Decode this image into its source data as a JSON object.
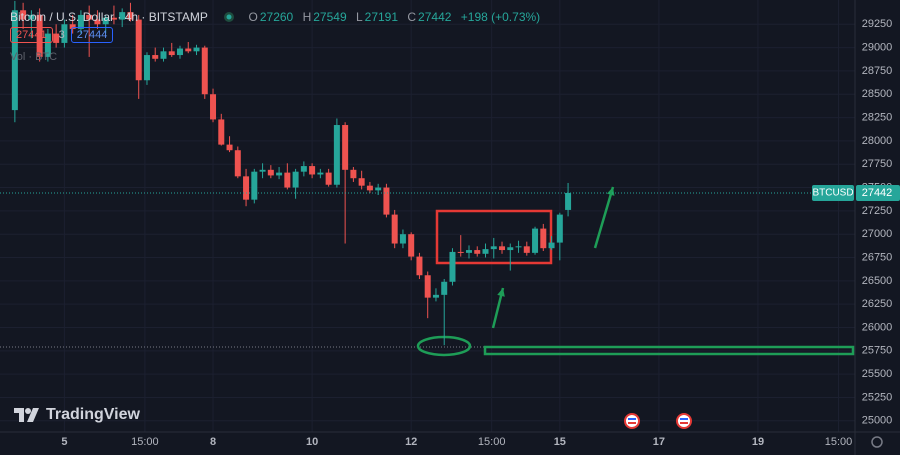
{
  "chart_data": {
    "type": "candlestick",
    "title": "Bitcoin / U.S. Dollar · 4h · BITSTAMP",
    "ohlc_letters": [
      "O",
      "H",
      "L",
      "C"
    ],
    "change": "+198 (+0.73%)",
    "bid": 27441,
    "spread": 3,
    "ask": 27444,
    "volume_label": "Vol · BTC",
    "brand": "TradingView",
    "symbol": "BTCUSD",
    "up_color": "#26a69a",
    "down_color": "#ef5350",
    "grid": true,
    "x": [
      -24,
      -20,
      -16,
      -12,
      -8,
      -4,
      0,
      4,
      8,
      12,
      16,
      20,
      24,
      28,
      32,
      36,
      40,
      44,
      48,
      52,
      56,
      60,
      64,
      68,
      72,
      76,
      80,
      84,
      88,
      92,
      96,
      100,
      104,
      108,
      112,
      116,
      120,
      124,
      128,
      132,
      136,
      140,
      144,
      148,
      152,
      156,
      160,
      164,
      168,
      172,
      176,
      180,
      184,
      188,
      192,
      196,
      200,
      204,
      208,
      212,
      216,
      220,
      224,
      228,
      232,
      236,
      240,
      244
    ],
    "open": [
      28330,
      29400,
      29300,
      29350,
      28900,
      29150,
      29050,
      29250,
      29200,
      29350,
      29300,
      29250,
      29320,
      29300,
      29380,
      29300,
      28650,
      28920,
      28880,
      28960,
      28920,
      28990,
      28960,
      29000,
      28500,
      28230,
      27960,
      27900,
      27620,
      27370,
      27670,
      27690,
      27630,
      27660,
      27500,
      27670,
      27730,
      27640,
      27660,
      27530,
      28170,
      27690,
      27600,
      27520,
      27470,
      27500,
      27210,
      26900,
      27000,
      26760,
      26560,
      26320,
      26350,
      26490,
      26810,
      26800,
      26830,
      26790,
      26840,
      26870,
      26830,
      26860,
      26870,
      26800,
      27060,
      26850,
      26910,
      27260
    ],
    "high": [
      29500,
      29480,
      29400,
      29420,
      29200,
      29250,
      29300,
      29350,
      29400,
      29450,
      29400,
      29350,
      29450,
      29420,
      29480,
      29350,
      28950,
      29000,
      29000,
      29050,
      29020,
      29060,
      29030,
      29020,
      28560,
      28290,
      28050,
      27940,
      27700,
      27700,
      27760,
      27740,
      27720,
      27760,
      27700,
      27780,
      27760,
      27700,
      27700,
      28240,
      28200,
      27720,
      27680,
      27560,
      27540,
      27540,
      27260,
      27050,
      27020,
      26800,
      26600,
      26420,
      26520,
      26850,
      26990,
      26880,
      26870,
      26900,
      26960,
      26920,
      26900,
      26930,
      26920,
      27080,
      27110,
      26980,
      27230,
      27549
    ],
    "low": [
      28200,
      29200,
      29100,
      28850,
      28850,
      29000,
      29000,
      29150,
      29150,
      28900,
      29200,
      29150,
      29250,
      29220,
      29280,
      28450,
      28600,
      28850,
      28850,
      28900,
      28880,
      28940,
      28920,
      28450,
      28200,
      27950,
      27880,
      27600,
      27300,
      27330,
      27600,
      27600,
      27590,
      27480,
      27380,
      27620,
      27600,
      27600,
      27510,
      27500,
      26900,
      27560,
      27480,
      27440,
      27420,
      27180,
      26850,
      26850,
      26720,
      26520,
      26100,
      26280,
      25810,
      26450,
      26760,
      26740,
      26760,
      26750,
      26740,
      26790,
      26610,
      26800,
      26770,
      26780,
      26820,
      26830,
      26720,
      27191
    ],
    "close": [
      29400,
      29300,
      29350,
      28900,
      29150,
      29050,
      29250,
      29200,
      29350,
      29300,
      29250,
      29320,
      29300,
      29380,
      29300,
      28650,
      28920,
      28880,
      28960,
      28920,
      28990,
      28960,
      29000,
      28500,
      28230,
      27960,
      27900,
      27620,
      27370,
      27670,
      27690,
      27630,
      27660,
      27500,
      27670,
      27730,
      27640,
      27660,
      27530,
      28170,
      27690,
      27600,
      27520,
      27470,
      27500,
      27210,
      26900,
      27000,
      26760,
      26560,
      26320,
      26350,
      26490,
      26810,
      26800,
      26830,
      26790,
      26840,
      26870,
      26830,
      26860,
      26870,
      26800,
      27060,
      26850,
      26910,
      27210,
      27442
    ],
    "xlim": [
      -31.2,
      383
    ],
    "xticks": [
      {
        "value": 0,
        "label": "5"
      },
      {
        "value": 39,
        "label": "15:00"
      },
      {
        "value": 72,
        "label": "8"
      },
      {
        "value": 120,
        "label": "10"
      },
      {
        "value": 168,
        "label": "12"
      },
      {
        "value": 207,
        "label": "15:00"
      },
      {
        "value": 240,
        "label": "15"
      },
      {
        "value": 288,
        "label": "17"
      },
      {
        "value": 336,
        "label": "19"
      },
      {
        "value": 375,
        "label": "15:00"
      }
    ],
    "ylim": [
      24880,
      29510
    ],
    "yticks": [
      25000,
      25250,
      25500,
      25750,
      26000,
      26250,
      26500,
      26750,
      27000,
      27250,
      27500,
      27750,
      28000,
      28250,
      28500,
      28750,
      29000,
      29250
    ]
  }
}
